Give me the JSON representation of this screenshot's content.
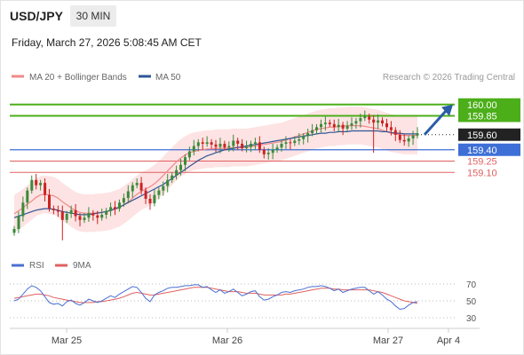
{
  "header": {
    "pair": "USD/JPY",
    "timeframe": "30 MIN",
    "datetime": "Friday, March 27, 2026 5:08:45 AM CET"
  },
  "credit": "Research © 2026 Trading Central",
  "colors": {
    "up": "#3a8a3a",
    "down": "#cc2222",
    "ma20": "#f08a8a",
    "bands": "#fde3e3",
    "ma50": "#2f5597",
    "target": "#4caf1a",
    "pivot": "#3d6fd6",
    "support": "#e06060",
    "current": "#222222",
    "arrow": "#2a5da8",
    "rsi": "#4a6fd1",
    "rsi_ma": "#e06060"
  },
  "chart_data": [
    {
      "type": "candlestick",
      "legend": [
        "MA 20 + Bollinger Bands",
        "MA 50"
      ],
      "ylim": [
        158.15,
        160.15
      ],
      "x_ticks": [
        "Mar 25",
        "Mar 26",
        "Mar 27",
        "Apr 4"
      ],
      "levels": [
        {
          "value": 160.0,
          "label": "160.00",
          "kind": "target"
        },
        {
          "value": 159.85,
          "label": "159.85",
          "kind": "target"
        },
        {
          "value": 159.6,
          "label": "159.60",
          "kind": "current"
        },
        {
          "value": 159.4,
          "label": "159.40",
          "kind": "pivot"
        },
        {
          "value": 159.25,
          "label": "159.25",
          "kind": "support"
        },
        {
          "value": 159.1,
          "label": "159.10",
          "kind": "support"
        }
      ],
      "arrow": {
        "from": 159.6,
        "to": 160.0
      },
      "closes": [
        158.35,
        158.52,
        158.7,
        158.86,
        159.0,
        158.93,
        158.96,
        158.8,
        158.62,
        158.6,
        158.58,
        158.47,
        158.55,
        158.6,
        158.52,
        158.47,
        158.5,
        158.56,
        158.53,
        158.5,
        158.54,
        158.59,
        158.64,
        158.62,
        158.7,
        158.76,
        158.85,
        158.93,
        158.96,
        158.86,
        158.75,
        158.69,
        158.8,
        158.86,
        158.92,
        159.0,
        159.06,
        159.13,
        159.2,
        159.3,
        159.38,
        159.45,
        159.5,
        159.48,
        159.5,
        159.47,
        159.44,
        159.48,
        159.43,
        159.45,
        159.52,
        159.48,
        159.42,
        159.44,
        159.48,
        159.5,
        159.4,
        159.34,
        159.36,
        159.4,
        159.43,
        159.48,
        159.5,
        159.49,
        159.52,
        159.54,
        159.58,
        159.62,
        159.66,
        159.7,
        159.74,
        159.76,
        159.74,
        159.7,
        159.73,
        159.68,
        159.72,
        159.75,
        159.78,
        159.82,
        159.84,
        159.8,
        159.76,
        159.79,
        159.75,
        159.7,
        159.66,
        159.6,
        159.53,
        159.51,
        159.55,
        159.59,
        159.62
      ],
      "ma20": [
        158.55,
        158.59,
        158.63,
        158.68,
        158.72,
        158.77,
        158.8,
        158.81,
        158.8,
        158.79,
        158.76,
        158.71,
        158.67,
        158.63,
        158.59,
        158.57,
        158.56,
        158.56,
        158.56,
        158.57,
        158.57,
        158.58,
        158.59,
        158.61,
        158.63,
        158.67,
        158.71,
        158.76,
        158.81,
        158.85,
        158.88,
        158.91,
        158.95,
        159.0,
        159.06,
        159.12,
        159.18,
        159.24,
        159.29,
        159.33,
        159.36,
        159.38,
        159.39,
        159.4,
        159.41,
        159.41,
        159.42,
        159.42,
        159.42,
        159.42,
        159.43,
        159.43,
        159.43,
        159.43,
        159.44,
        159.45,
        159.46,
        159.47,
        159.48,
        159.49,
        159.5,
        159.51,
        159.53,
        159.55,
        159.57,
        159.59,
        159.61,
        159.63,
        159.65,
        159.67,
        159.68,
        159.69,
        159.7,
        159.7,
        159.71,
        159.71,
        159.72,
        159.72,
        159.72,
        159.72,
        159.71,
        159.7,
        159.69,
        159.68,
        159.66,
        159.64,
        159.62,
        159.61,
        159.6,
        159.59,
        159.59,
        159.59,
        159.59
      ],
      "ma50": [
        158.5,
        158.52,
        158.54,
        158.56,
        158.58,
        158.6,
        158.61,
        158.62,
        158.62,
        158.61,
        158.6,
        158.58,
        158.57,
        158.56,
        158.55,
        158.54,
        158.54,
        158.54,
        158.55,
        158.56,
        158.57,
        158.58,
        158.6,
        158.62,
        158.64,
        158.67,
        158.7,
        158.73,
        158.76,
        158.79,
        158.82,
        158.85,
        158.88,
        158.91,
        158.94,
        158.98,
        159.02,
        159.06,
        159.1,
        159.14,
        159.18,
        159.22,
        159.26,
        159.29,
        159.32,
        159.34,
        159.36,
        159.38,
        159.4,
        159.41,
        159.42,
        159.43,
        159.44,
        159.45,
        159.46,
        159.47,
        159.48,
        159.49,
        159.5,
        159.51,
        159.52,
        159.53,
        159.54,
        159.55,
        159.56,
        159.57,
        159.58,
        159.59,
        159.6,
        159.61,
        159.62,
        159.62,
        159.63,
        159.63,
        159.64,
        159.64,
        159.64,
        159.65,
        159.65,
        159.65,
        159.65,
        159.65,
        159.65,
        159.65,
        159.64,
        159.64,
        159.63,
        159.62,
        159.62,
        159.61,
        159.61,
        159.61,
        159.61
      ],
      "band_width": 0.25
    },
    {
      "type": "line",
      "legend": [
        "RSI",
        "9MA"
      ],
      "ylim": [
        20,
        80
      ],
      "y_ticks": [
        70,
        50,
        30
      ],
      "rsi": [
        50,
        52,
        58,
        64,
        68,
        66,
        62,
        55,
        48,
        46,
        47,
        44,
        49,
        51,
        47,
        45,
        48,
        52,
        50,
        48,
        50,
        53,
        56,
        54,
        58,
        61,
        64,
        67,
        66,
        60,
        53,
        49,
        57,
        60,
        62,
        65,
        66,
        66,
        67,
        68,
        68,
        69,
        69,
        66,
        67,
        63,
        60,
        63,
        59,
        61,
        64,
        60,
        56,
        58,
        61,
        62,
        55,
        51,
        52,
        55,
        57,
        60,
        61,
        60,
        62,
        63,
        64,
        66,
        67,
        67,
        68,
        67,
        65,
        62,
        64,
        60,
        62,
        64,
        65,
        66,
        66,
        62,
        58,
        61,
        57,
        52,
        49,
        44,
        40,
        41,
        45,
        48,
        49
      ],
      "ma": [
        53,
        54,
        55,
        56,
        57,
        58,
        58,
        57,
        56,
        54,
        53,
        52,
        51,
        50,
        49,
        48,
        48,
        48,
        48,
        49,
        49,
        50,
        51,
        52,
        53,
        55,
        57,
        59,
        60,
        59,
        58,
        57,
        57,
        58,
        59,
        60,
        61,
        62,
        63,
        64,
        65,
        66,
        66,
        66,
        66,
        65,
        64,
        63,
        62,
        61,
        61,
        61,
        60,
        59,
        59,
        59,
        58,
        57,
        57,
        57,
        57,
        57,
        58,
        58,
        59,
        60,
        61,
        62,
        63,
        64,
        65,
        65,
        65,
        64,
        64,
        63,
        63,
        63,
        63,
        63,
        63,
        63,
        62,
        61,
        60,
        58,
        56,
        54,
        52,
        50,
        49,
        48,
        47
      ]
    }
  ]
}
